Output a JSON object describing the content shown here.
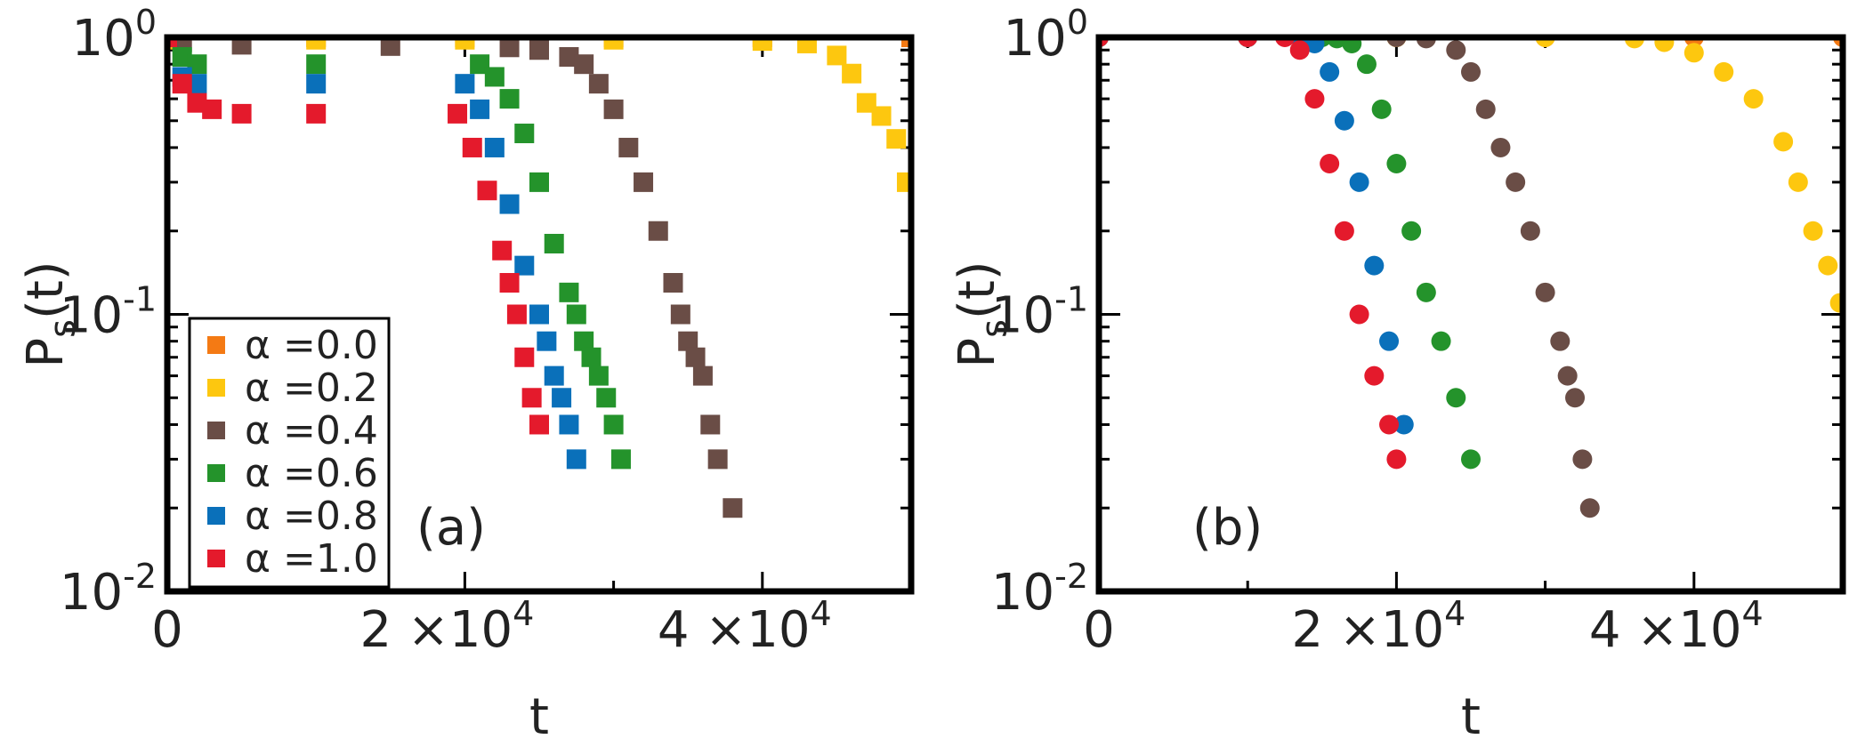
{
  "colors": {
    "a0.0": "#f47a14",
    "a0.2": "#fdc70f",
    "a0.4": "#6a4d46",
    "a0.6": "#24932b",
    "a0.8": "#0a70ba",
    "a1.0": "#e41a2c",
    "frame": "#000000",
    "text": "#222222"
  },
  "chart_data": [
    {
      "type": "scatter",
      "panel_label": "(a)",
      "marker": "square",
      "xlabel": "t",
      "ylabel": "P_s(t)",
      "xscale": "linear",
      "yscale": "log",
      "xlim": [
        0,
        50000
      ],
      "ylim": [
        0.01,
        1
      ],
      "x_ticks": [
        {
          "value": 0,
          "base": "0",
          "exp": ""
        },
        {
          "value": 20000,
          "base": "2 ×10",
          "exp": "4"
        },
        {
          "value": 40000,
          "base": "4 ×10",
          "exp": "4"
        }
      ],
      "y_ticks": [
        {
          "value": 1,
          "base": "10",
          "exp": "0"
        },
        {
          "value": 0.1,
          "base": "10",
          "exp": "-1"
        },
        {
          "value": 0.01,
          "base": "10",
          "exp": "-2"
        }
      ],
      "legend": {
        "placement": "bottom-left",
        "entries": [
          {
            "label": "α =0.0",
            "color_key": "a0.0"
          },
          {
            "label": "α =0.2",
            "color_key": "a0.2"
          },
          {
            "label": "α =0.4",
            "color_key": "a0.4"
          },
          {
            "label": "α =0.6",
            "color_key": "a0.6"
          },
          {
            "label": "α =0.8",
            "color_key": "a0.8"
          },
          {
            "label": "α =1.0",
            "color_key": "a1.0"
          }
        ]
      },
      "series": [
        {
          "name": "α =0.0",
          "color_key": "a0.0",
          "x": [
            0,
            10000,
            20000,
            30000,
            40000,
            50000
          ],
          "y": [
            1,
            1,
            1,
            1,
            1,
            1
          ]
        },
        {
          "name": "α =0.2",
          "color_key": "a0.2",
          "x": [
            0,
            10000,
            20000,
            30000,
            40000,
            43000,
            45000,
            46000,
            47000,
            48000,
            49000,
            49700
          ],
          "y": [
            0.98,
            0.98,
            0.98,
            0.98,
            0.97,
            0.95,
            0.86,
            0.74,
            0.58,
            0.52,
            0.43,
            0.3
          ]
        },
        {
          "name": "α =0.4",
          "color_key": "a0.4",
          "x": [
            0,
            1000,
            5000,
            15000,
            23000,
            25000,
            27000,
            28000,
            29000,
            30000,
            31000,
            32000,
            33000,
            34000,
            34500,
            35000,
            35500,
            36000,
            36500,
            37000,
            38000
          ],
          "y": [
            1,
            0.96,
            0.94,
            0.93,
            0.92,
            0.9,
            0.85,
            0.8,
            0.68,
            0.55,
            0.4,
            0.3,
            0.2,
            0.13,
            0.1,
            0.08,
            0.07,
            0.06,
            0.04,
            0.03,
            0.02
          ]
        },
        {
          "name": "α =0.6",
          "color_key": "a0.6",
          "x": [
            0,
            1000,
            2000,
            10000,
            21000,
            22000,
            23000,
            24000,
            25000,
            26000,
            27000,
            27500,
            28000,
            28500,
            29000,
            29500,
            30000,
            30500
          ],
          "y": [
            1,
            0.85,
            0.8,
            0.8,
            0.8,
            0.72,
            0.6,
            0.45,
            0.3,
            0.18,
            0.12,
            0.1,
            0.08,
            0.07,
            0.06,
            0.05,
            0.04,
            0.03
          ]
        },
        {
          "name": "α =0.8",
          "color_key": "a0.8",
          "x": [
            0,
            1000,
            2000,
            10000,
            20000,
            21000,
            22000,
            23000,
            24000,
            25000,
            25500,
            26000,
            26500,
            27000,
            27500
          ],
          "y": [
            1,
            0.72,
            0.68,
            0.68,
            0.68,
            0.55,
            0.4,
            0.25,
            0.15,
            0.1,
            0.08,
            0.06,
            0.05,
            0.04,
            0.03
          ]
        },
        {
          "name": "α =1.0",
          "color_key": "a1.0",
          "x": [
            0,
            1000,
            2000,
            3000,
            5000,
            10000,
            19500,
            20500,
            21500,
            22500,
            23000,
            23500,
            24000,
            24500,
            25000
          ],
          "y": [
            1,
            0.68,
            0.58,
            0.55,
            0.53,
            0.53,
            0.53,
            0.4,
            0.28,
            0.17,
            0.13,
            0.1,
            0.07,
            0.05,
            0.04
          ]
        }
      ]
    },
    {
      "type": "scatter",
      "panel_label": "(b)",
      "marker": "circle",
      "xlabel": "t",
      "ylabel": "P_s(t)",
      "xscale": "linear",
      "yscale": "log",
      "xlim": [
        0,
        50000
      ],
      "ylim": [
        0.01,
        1
      ],
      "x_ticks": [
        {
          "value": 0,
          "base": "0",
          "exp": ""
        },
        {
          "value": 20000,
          "base": "2 ×10",
          "exp": "4"
        },
        {
          "value": 40000,
          "base": "4 ×10",
          "exp": "4"
        }
      ],
      "y_ticks": [
        {
          "value": 1,
          "base": "10",
          "exp": "0"
        },
        {
          "value": 0.1,
          "base": "10",
          "exp": "-1"
        },
        {
          "value": 0.01,
          "base": "10",
          "exp": "-2"
        }
      ],
      "series": [
        {
          "name": "α =0.0",
          "color_key": "a0.0",
          "x": [
            0,
            10000,
            20000,
            30000,
            40000,
            50000
          ],
          "y": [
            1,
            1,
            1,
            1,
            1,
            1
          ]
        },
        {
          "name": "α =0.2",
          "color_key": "a0.2",
          "x": [
            0,
            10000,
            20000,
            30000,
            36000,
            38000,
            40000,
            42000,
            44000,
            46000,
            47000,
            48000,
            49000,
            49800
          ],
          "y": [
            1,
            1,
            1,
            1,
            0.99,
            0.96,
            0.88,
            0.75,
            0.6,
            0.42,
            0.3,
            0.2,
            0.15,
            0.11
          ]
        },
        {
          "name": "α =0.4",
          "color_key": "a0.4",
          "x": [
            0,
            10000,
            20000,
            22000,
            24000,
            25000,
            26000,
            27000,
            28000,
            29000,
            30000,
            31000,
            31500,
            32000,
            32500,
            33000
          ],
          "y": [
            1,
            1,
            1,
            0.99,
            0.9,
            0.75,
            0.55,
            0.4,
            0.3,
            0.2,
            0.12,
            0.08,
            0.06,
            0.05,
            0.03,
            0.02
          ]
        },
        {
          "name": "α =0.6",
          "color_key": "a0.6",
          "x": [
            0,
            10000,
            15000,
            16000,
            17000,
            18000,
            19000,
            20000,
            21000,
            22000,
            23000,
            24000,
            25000
          ],
          "y": [
            1,
            1,
            1,
            0.99,
            0.95,
            0.8,
            0.55,
            0.35,
            0.2,
            0.12,
            0.08,
            0.05,
            0.03
          ]
        },
        {
          "name": "α =0.8",
          "color_key": "a0.8",
          "x": [
            0,
            10000,
            13500,
            14500,
            15500,
            16500,
            17500,
            18500,
            19500,
            20500
          ],
          "y": [
            1,
            1,
            1,
            0.95,
            0.75,
            0.5,
            0.3,
            0.15,
            0.08,
            0.04
          ]
        },
        {
          "name": "α =1.0",
          "color_key": "a1.0",
          "x": [
            0,
            10000,
            12500,
            13500,
            14500,
            15500,
            16500,
            17500,
            18500,
            19500,
            20000
          ],
          "y": [
            1,
            1,
            1,
            0.9,
            0.6,
            0.35,
            0.2,
            0.1,
            0.06,
            0.04,
            0.03
          ]
        }
      ]
    }
  ]
}
